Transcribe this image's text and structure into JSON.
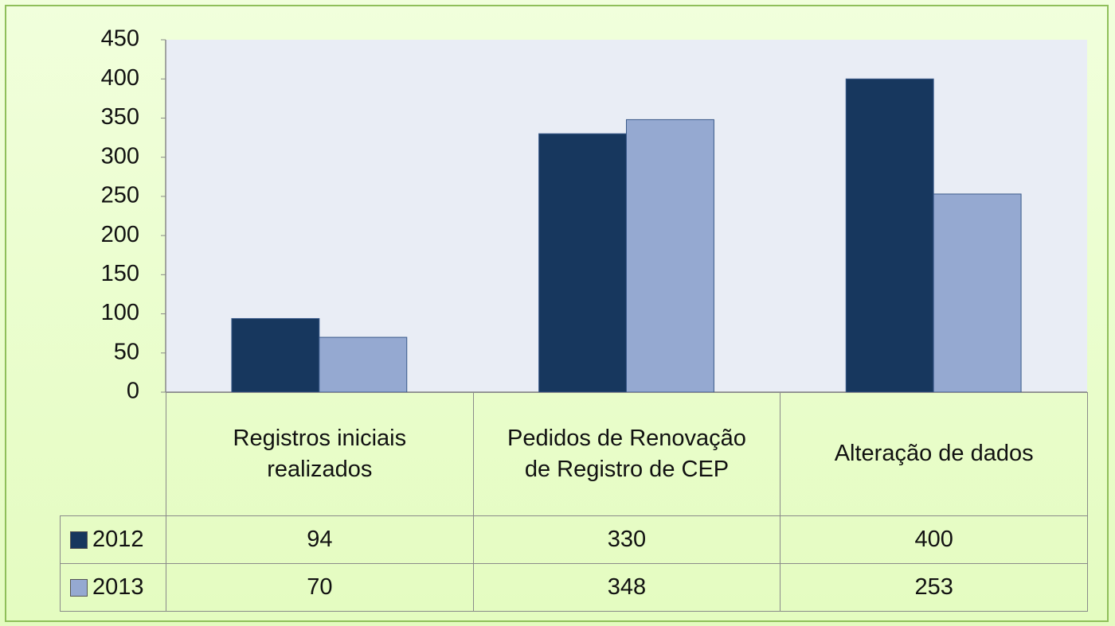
{
  "chart_data": {
    "type": "bar",
    "categories": [
      "Registros iniciais realizados",
      "Pedidos de Renovação de Registro de CEP",
      "Alteração de dados"
    ],
    "series": [
      {
        "name": "2012",
        "color": "#17375e",
        "values": [
          94,
          330,
          400
        ]
      },
      {
        "name": "2013",
        "color": "#95a9d1",
        "values": [
          70,
          348,
          253
        ]
      }
    ],
    "ylim": [
      0,
      450
    ],
    "yticks": [
      0,
      50,
      100,
      150,
      200,
      250,
      300,
      350,
      400,
      450
    ],
    "data_table": true,
    "legend": "table"
  }
}
